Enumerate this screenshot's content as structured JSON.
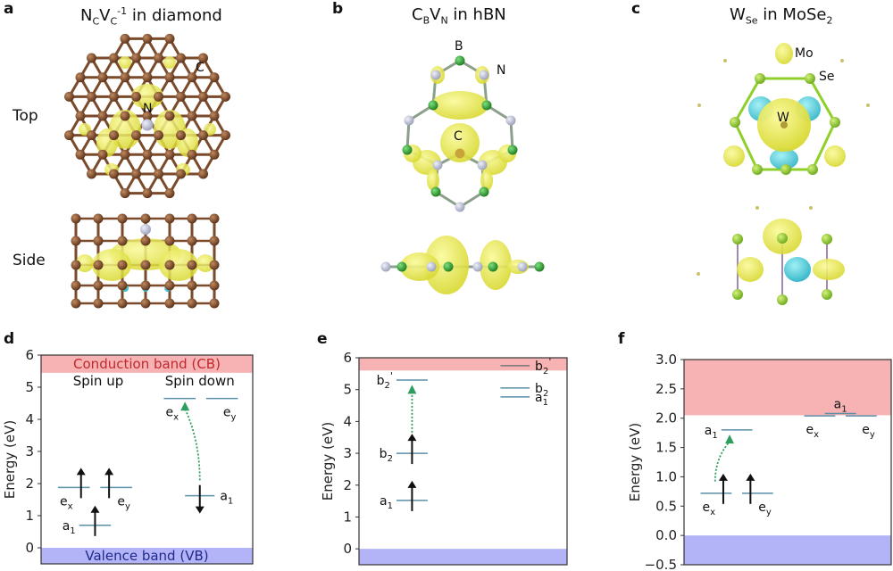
{
  "figure": {
    "panels_top": [
      {
        "letter": "a",
        "title_main": "N",
        "title_sub1": "C",
        "title_mid": "V",
        "title_sub2": "C",
        "title_sup": "-1",
        "title_tail": " in diamond",
        "row_labels": [
          "Top",
          "Side"
        ],
        "atom_labels": [
          "C",
          "N"
        ]
      },
      {
        "letter": "b",
        "title_main": "C",
        "title_sub1": "B",
        "title_mid": "V",
        "title_sub2": "N",
        "title_tail": " in hBN",
        "atom_labels": [
          "B",
          "N",
          "C"
        ]
      },
      {
        "letter": "c",
        "title_main": "W",
        "title_sub1": "Se",
        "title_tail": " in MoSe",
        "title_sub2": "2",
        "atom_labels": [
          "Mo",
          "Se",
          "W"
        ]
      }
    ],
    "colors": {
      "conduction_band": "#f7b3b3",
      "valence_band": "#b3b3f7",
      "level_line": "#5a8fa8",
      "transition_arrow": "#2e9e5e",
      "electron_arrow": "#111111",
      "cb_text": "#c0282e",
      "vb_text": "#1f2a8c",
      "isosurface_yellow": "#e8e83a",
      "isosurface_cyan": "#3ec9d6",
      "carbon_atom": "#7a4a2a",
      "boron_atom": "#2a9a2a",
      "nitrogen_atom": "#b8bccf",
      "selenium_atom": "#8fcf2a"
    }
  },
  "chart_data": [
    {
      "panel": "d",
      "type": "energy-level-diagram",
      "ylabel": "Energy (eV)",
      "ylim": [
        -0.5,
        6
      ],
      "yticks": [
        0,
        1,
        2,
        3,
        4,
        5,
        6
      ],
      "bands": [
        {
          "name": "Conduction band (CB)",
          "from": 5.45,
          "to": 6,
          "kind": "cb",
          "label": "Conduction band (CB)"
        },
        {
          "name": "Valence band (VB)",
          "from": -0.5,
          "to": 0,
          "kind": "vb",
          "label": "Valence band (VB)"
        }
      ],
      "column_headers": [
        {
          "text": "Spin up",
          "x": 0.27,
          "y": 5.2
        },
        {
          "text": "Spin down",
          "x": 0.75,
          "y": 5.2
        }
      ],
      "levels": [
        {
          "name": "e_x",
          "base": "e",
          "sub": "x",
          "energy": 1.88,
          "x0": 0.08,
          "x1": 0.23,
          "label_side": "below-left",
          "electron": "up"
        },
        {
          "name": "e_y",
          "base": "e",
          "sub": "y",
          "energy": 1.88,
          "x0": 0.28,
          "x1": 0.43,
          "label_side": "below-right",
          "electron": "up"
        },
        {
          "name": "a_1",
          "base": "a",
          "sub": "1",
          "energy": 0.7,
          "x0": 0.18,
          "x1": 0.33,
          "label_side": "left",
          "electron": "up"
        },
        {
          "name": "e_x",
          "base": "e",
          "sub": "x",
          "energy": 4.65,
          "x0": 0.58,
          "x1": 0.73,
          "label_side": "below-left",
          "electron": null
        },
        {
          "name": "e_y",
          "base": "e",
          "sub": "y",
          "energy": 4.65,
          "x0": 0.78,
          "x1": 0.93,
          "label_side": "below-right",
          "electron": null
        },
        {
          "name": "a_1",
          "base": "a",
          "sub": "1",
          "energy": 1.62,
          "x0": 0.68,
          "x1": 0.82,
          "label_side": "right",
          "electron": "down"
        }
      ],
      "transitions": [
        {
          "from_energy": 2.1,
          "to_energy": 4.55,
          "x_from": 0.75,
          "x_to": 0.68,
          "curved": true
        }
      ]
    },
    {
      "panel": "e",
      "type": "energy-level-diagram",
      "ylabel": "Energy (eV)",
      "ylim": [
        -0.5,
        6
      ],
      "yticks": [
        0,
        1,
        2,
        3,
        4,
        5,
        6
      ],
      "bands": [
        {
          "name": "Conduction band",
          "from": 5.6,
          "to": 6,
          "kind": "cb",
          "label": ""
        },
        {
          "name": "Valence band",
          "from": -0.5,
          "to": 0,
          "kind": "vb",
          "label": ""
        }
      ],
      "levels": [
        {
          "name": "b_2'",
          "base": "b",
          "sub": "2",
          "prime": true,
          "energy": 5.3,
          "x0": 0.18,
          "x1": 0.33,
          "label_side": "left",
          "electron": null
        },
        {
          "name": "b_2",
          "base": "b",
          "sub": "2",
          "energy": 3.0,
          "x0": 0.18,
          "x1": 0.33,
          "label_side": "left",
          "electron": "up"
        },
        {
          "name": "a_1",
          "base": "a",
          "sub": "1",
          "energy": 1.52,
          "x0": 0.18,
          "x1": 0.33,
          "label_side": "left",
          "electron": "up"
        },
        {
          "name": "b_2'",
          "base": "b",
          "sub": "2",
          "prime": true,
          "energy": 5.75,
          "x0": 0.68,
          "x1": 0.82,
          "label_side": "right",
          "electron": null,
          "muted": true
        },
        {
          "name": "b_2",
          "base": "b",
          "sub": "2",
          "energy": 5.05,
          "x0": 0.68,
          "x1": 0.82,
          "label_side": "right",
          "electron": null
        },
        {
          "name": "a_1",
          "base": "a",
          "sub": "1",
          "energy": 4.77,
          "x0": 0.68,
          "x1": 0.82,
          "label_side": "right",
          "electron": null
        }
      ],
      "transitions": [
        {
          "from_energy": 3.65,
          "to_energy": 5.15,
          "x_from": 0.255,
          "x_to": 0.255,
          "curved": false
        }
      ]
    },
    {
      "panel": "f",
      "type": "energy-level-diagram",
      "ylabel": "Energy (eV)",
      "ylim": [
        -0.5,
        3.0
      ],
      "yticks": [
        -0.5,
        0.0,
        0.5,
        1.0,
        1.5,
        2.0,
        2.5,
        3.0
      ],
      "ytick_labels": [
        "−0.5",
        "0.0",
        "0.5",
        "1.0",
        "1.5",
        "2.0",
        "2.5",
        "3.0"
      ],
      "bands": [
        {
          "name": "Conduction band",
          "from": 2.05,
          "to": 3.0,
          "kind": "cb",
          "label": ""
        },
        {
          "name": "Valence band",
          "from": -0.5,
          "to": 0,
          "kind": "vb",
          "label": ""
        }
      ],
      "levels": [
        {
          "name": "e_x",
          "base": "e",
          "sub": "x",
          "energy": 0.72,
          "x0": 0.08,
          "x1": 0.23,
          "label_side": "below-left",
          "electron": "up"
        },
        {
          "name": "e_y",
          "base": "e",
          "sub": "y",
          "energy": 0.72,
          "x0": 0.28,
          "x1": 0.43,
          "label_side": "below-right",
          "electron": "up"
        },
        {
          "name": "a_1",
          "base": "a",
          "sub": "1",
          "energy": 1.8,
          "x0": 0.18,
          "x1": 0.33,
          "label_side": "left",
          "electron": null
        },
        {
          "name": "e_x",
          "base": "e",
          "sub": "x",
          "energy": 2.04,
          "x0": 0.58,
          "x1": 0.73,
          "label_side": "below-left",
          "electron": null
        },
        {
          "name": "a_1",
          "base": "a",
          "sub": "1",
          "energy": 2.08,
          "x0": 0.68,
          "x1": 0.83,
          "label_side": "above",
          "electron": null
        },
        {
          "name": "e_y",
          "base": "e",
          "sub": "y",
          "energy": 2.04,
          "x0": 0.78,
          "x1": 0.93,
          "label_side": "below-right",
          "electron": null
        }
      ],
      "transitions": [
        {
          "from_energy": 0.92,
          "to_energy": 1.72,
          "x_from": 0.15,
          "x_to": 0.22,
          "curved": true
        }
      ]
    }
  ]
}
